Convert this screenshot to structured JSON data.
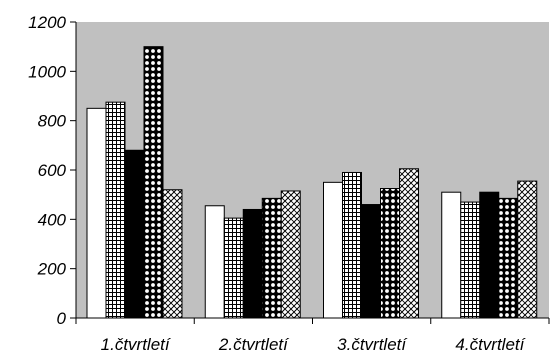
{
  "chart_data": {
    "type": "bar",
    "title": "",
    "xlabel": "",
    "ylabel": "",
    "ylim": [
      0,
      1200
    ],
    "y_ticks": [
      "0",
      "200",
      "400",
      "600",
      "800",
      "1000",
      "1200"
    ],
    "grid": false,
    "legend": "none",
    "plot_background": "#c0c0c0",
    "categories": [
      "1.čtvrtletí",
      "2.čtvrtletí",
      "3.čtvrtletí",
      "4.čtvrtletí"
    ],
    "series": [
      {
        "pattern": "white",
        "values": [
          850,
          455,
          550,
          510
        ]
      },
      {
        "pattern": "grid",
        "values": [
          875,
          405,
          590,
          470
        ]
      },
      {
        "pattern": "black",
        "values": [
          680,
          440,
          460,
          510
        ]
      },
      {
        "pattern": "dots",
        "values": [
          1100,
          485,
          525,
          485
        ]
      },
      {
        "pattern": "diagonal",
        "values": [
          520,
          515,
          605,
          555
        ]
      }
    ]
  }
}
